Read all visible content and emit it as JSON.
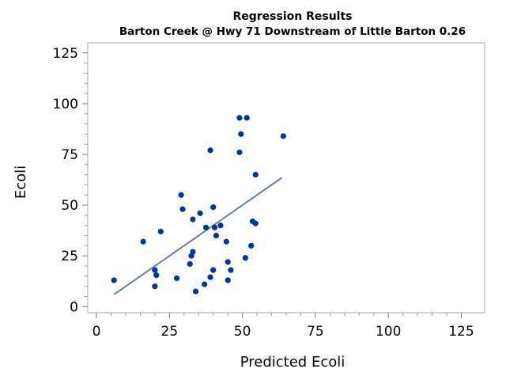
{
  "chart_data": {
    "type": "scatter",
    "title": "Regression Results",
    "subtitle": "Barton Creek @ Hwy 71 Downstream of Little Barton 0.26",
    "xlabel": "Predicted Ecoli",
    "ylabel": "Ecoli",
    "xlim": [
      -3,
      133
    ],
    "ylim": [
      -3,
      130
    ],
    "xticks": [
      "0",
      "25",
      "50",
      "75",
      "100",
      "125"
    ],
    "yticks": [
      "0",
      "25",
      "50",
      "75",
      "100",
      "125"
    ],
    "x_tick_values": [
      0,
      25,
      50,
      75,
      100,
      125
    ],
    "y_tick_values": [
      0,
      25,
      50,
      75,
      100,
      125
    ],
    "grid": false,
    "marker_color": "#00349E",
    "line_color": "#667FA2",
    "points": [
      {
        "x": 6,
        "y": 13
      },
      {
        "x": 16,
        "y": 32
      },
      {
        "x": 20,
        "y": 18
      },
      {
        "x": 20,
        "y": 10
      },
      {
        "x": 20.5,
        "y": 15.5
      },
      {
        "x": 22,
        "y": 37
      },
      {
        "x": 27.5,
        "y": 14
      },
      {
        "x": 29,
        "y": 55
      },
      {
        "x": 29.5,
        "y": 48
      },
      {
        "x": 32,
        "y": 21
      },
      {
        "x": 32.5,
        "y": 25
      },
      {
        "x": 33,
        "y": 27
      },
      {
        "x": 33,
        "y": 43
      },
      {
        "x": 34,
        "y": 7.5
      },
      {
        "x": 35.5,
        "y": 46
      },
      {
        "x": 37,
        "y": 11
      },
      {
        "x": 37.5,
        "y": 39
      },
      {
        "x": 39,
        "y": 14.5
      },
      {
        "x": 39,
        "y": 77
      },
      {
        "x": 40,
        "y": 18
      },
      {
        "x": 40,
        "y": 49
      },
      {
        "x": 40.5,
        "y": 39
      },
      {
        "x": 41,
        "y": 35
      },
      {
        "x": 42.5,
        "y": 40
      },
      {
        "x": 44.5,
        "y": 32
      },
      {
        "x": 45,
        "y": 13
      },
      {
        "x": 45,
        "y": 22
      },
      {
        "x": 46,
        "y": 18
      },
      {
        "x": 49,
        "y": 76
      },
      {
        "x": 49,
        "y": 93
      },
      {
        "x": 49.5,
        "y": 85
      },
      {
        "x": 51,
        "y": 24
      },
      {
        "x": 51.5,
        "y": 93
      },
      {
        "x": 53,
        "y": 30
      },
      {
        "x": 53.5,
        "y": 42
      },
      {
        "x": 54.5,
        "y": 41
      },
      {
        "x": 54.5,
        "y": 65
      },
      {
        "x": 64,
        "y": 84
      }
    ],
    "regression_line": {
      "x": [
        6,
        63.5
      ],
      "y": [
        6,
        63.5
      ]
    }
  }
}
